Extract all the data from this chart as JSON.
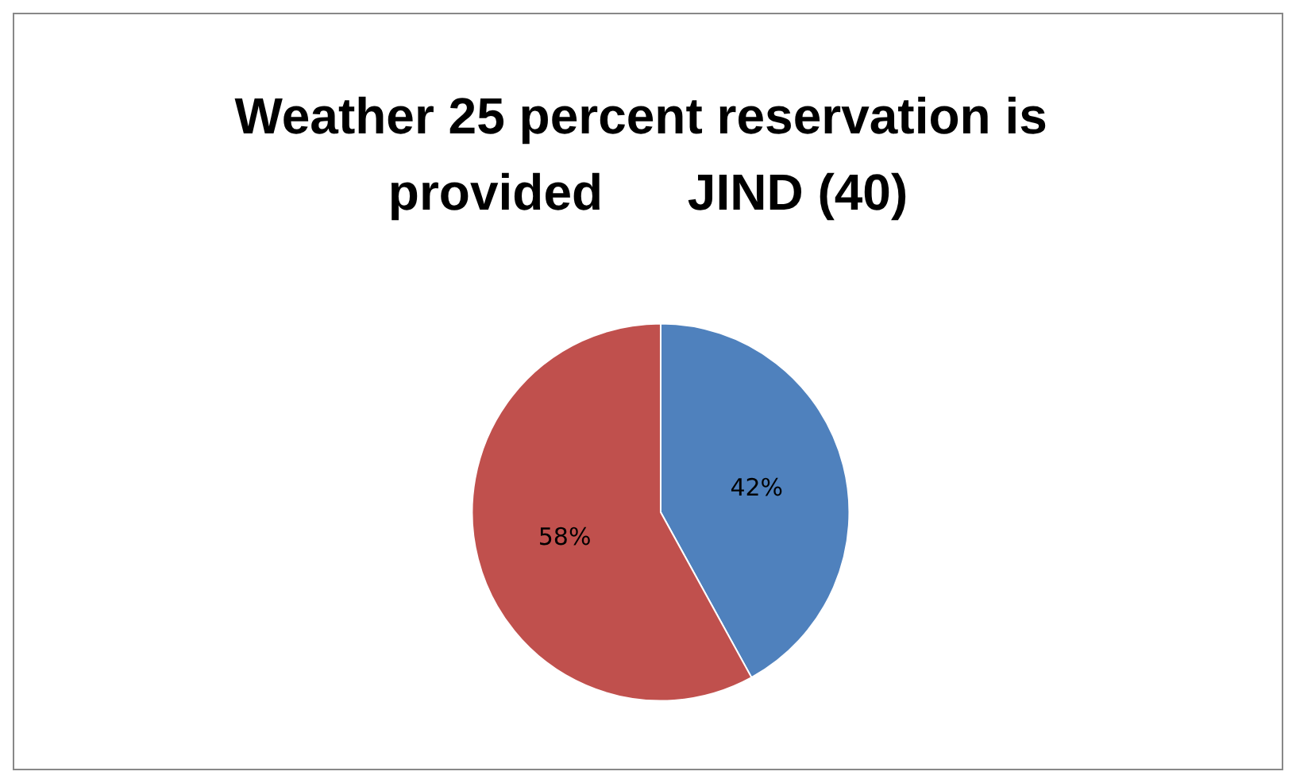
{
  "chart_data": {
    "type": "pie",
    "title": "Weather 25 percent reservation is provided      JIND (40)",
    "categories": [
      null,
      null
    ],
    "values": [
      42,
      58
    ],
    "value_labels": [
      "42%",
      "58%"
    ],
    "colors": [
      "#4f81bd",
      "#c0504d"
    ]
  }
}
